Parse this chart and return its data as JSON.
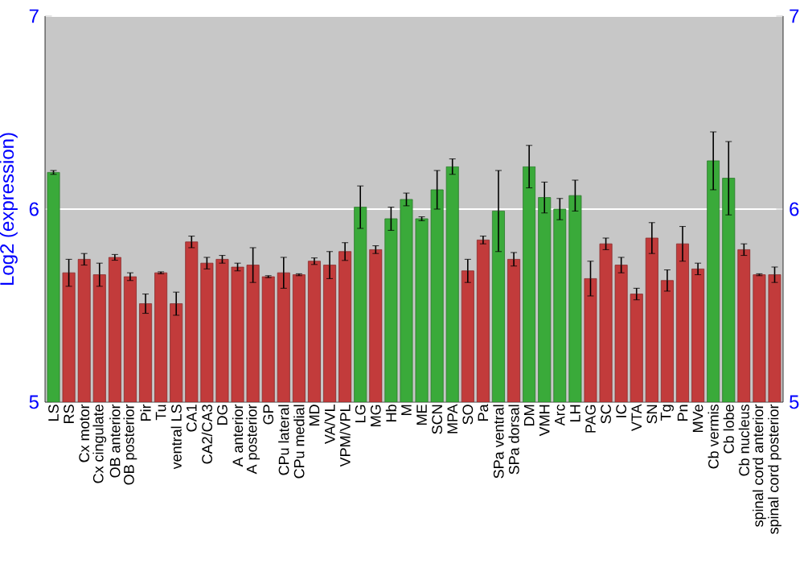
{
  "chart_data": {
    "type": "bar",
    "ylabel": "Log2 (expression)",
    "categories": [
      "LS",
      "RS",
      "Cx motor",
      "Cx cingulate",
      "OB anterior",
      "OB posterior",
      "Pir",
      "Tu",
      "ventral LS",
      "CA1",
      "CA2/CA3",
      "DG",
      "A anterior",
      "A posterior",
      "GP",
      "CPu lateral",
      "CPu medial",
      "MD",
      "VA/VL",
      "VPM/VPL",
      "LG",
      "MG",
      "Hb",
      "M",
      "ME",
      "SCN",
      "MPA",
      "SO",
      "Pa",
      "SPa ventral",
      "SPa dorsal",
      "DM",
      "VMH",
      "Arc",
      "LH",
      "PAG",
      "SC",
      "IC",
      "VTA",
      "SN",
      "Tg",
      "Pn",
      "MVe",
      "Cb vermis",
      "Cb lobe",
      "Cb nucleus",
      "spinal cord anterior",
      "spinal cord posterior"
    ],
    "values": [
      6.19,
      5.67,
      5.74,
      5.66,
      5.75,
      5.65,
      5.51,
      5.67,
      5.51,
      5.83,
      5.72,
      5.74,
      5.7,
      5.71,
      5.65,
      5.67,
      5.66,
      5.73,
      5.71,
      5.78,
      6.01,
      5.79,
      5.95,
      6.05,
      5.95,
      6.1,
      6.22,
      5.68,
      5.84,
      5.99,
      5.74,
      6.22,
      6.06,
      6.0,
      6.07,
      5.64,
      5.82,
      5.71,
      5.56,
      5.85,
      5.63,
      5.82,
      5.69,
      6.25,
      6.16,
      5.79,
      5.66,
      5.66
    ],
    "errors": [
      0.01,
      0.07,
      0.03,
      0.06,
      0.015,
      0.02,
      0.05,
      0.005,
      0.06,
      0.03,
      0.03,
      0.02,
      0.02,
      0.09,
      0.005,
      0.08,
      0.005,
      0.017,
      0.07,
      0.046,
      0.11,
      0.02,
      0.06,
      0.033,
      0.01,
      0.1,
      0.04,
      0.06,
      0.02,
      0.21,
      0.035,
      0.11,
      0.08,
      0.055,
      0.08,
      0.09,
      0.03,
      0.04,
      0.03,
      0.08,
      0.055,
      0.09,
      0.03,
      0.15,
      0.19,
      0.03,
      0.005,
      0.04
    ],
    "colors": [
      "#3aaa3a",
      "#c23b3b",
      "#c23b3b",
      "#c23b3b",
      "#c23b3b",
      "#c23b3b",
      "#c23b3b",
      "#c23b3b",
      "#c23b3b",
      "#c23b3b",
      "#c23b3b",
      "#c23b3b",
      "#c23b3b",
      "#c23b3b",
      "#c23b3b",
      "#c23b3b",
      "#c23b3b",
      "#c23b3b",
      "#c23b3b",
      "#c23b3b",
      "#3aaa3a",
      "#c23b3b",
      "#3aaa3a",
      "#3aaa3a",
      "#3aaa3a",
      "#3aaa3a",
      "#3aaa3a",
      "#c23b3b",
      "#c23b3b",
      "#3aaa3a",
      "#c23b3b",
      "#3aaa3a",
      "#3aaa3a",
      "#3aaa3a",
      "#3aaa3a",
      "#c23b3b",
      "#c23b3b",
      "#c23b3b",
      "#c23b3b",
      "#c23b3b",
      "#c23b3b",
      "#c23b3b",
      "#c23b3b",
      "#3aaa3a",
      "#3aaa3a",
      "#c23b3b",
      "#c23b3b",
      "#c23b3b"
    ],
    "ylim": [
      5,
      7
    ],
    "yticks": [
      5,
      6,
      7
    ],
    "y2lim": [
      5,
      7
    ],
    "y2ticks": [
      5,
      6,
      7
    ],
    "grid": "y"
  }
}
